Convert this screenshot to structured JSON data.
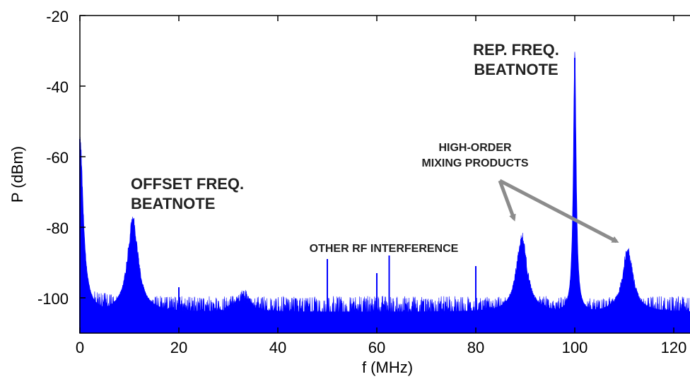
{
  "chart_data": {
    "type": "line",
    "xlabel": "f (MHz)",
    "ylabel": "P (dBm)",
    "xlim": [
      0,
      122
    ],
    "ylim": [
      -110,
      -20
    ],
    "x_ticks": [
      "0",
      "20",
      "40",
      "60",
      "80",
      "100",
      "120"
    ],
    "y_ticks": [
      "-20",
      "-40",
      "-60",
      "-80",
      "-100"
    ],
    "grid": false,
    "colors": {
      "trace": "#0000ff",
      "arrow": "#8c8c8c",
      "axis": "#000000"
    },
    "noise_floor_dbm": -104,
    "series": [
      {
        "name": "",
        "peaks": [
          {
            "f": 0,
            "p": -55
          },
          {
            "f": 10.7,
            "p": -78
          },
          {
            "f": 20,
            "p": -97
          },
          {
            "f": 33,
            "p": -99
          },
          {
            "f": 50,
            "p": -89
          },
          {
            "f": 60,
            "p": -93
          },
          {
            "f": 62.5,
            "p": -88
          },
          {
            "f": 80,
            "p": -91
          },
          {
            "f": 89.3,
            "p": -83
          },
          {
            "f": 100,
            "p": -32
          },
          {
            "f": 110.7,
            "p": -87
          }
        ]
      }
    ],
    "annotations": {
      "offset_line1": "OFFSET FREQ.",
      "offset_line2": "BEATNOTE",
      "rep_line1": "REP. FREQ.",
      "rep_line2": "BEATNOTE",
      "mixing_line1": "HIGH-ORDER",
      "mixing_line2": "MIXING PRODUCTS",
      "interference": "OTHER RF INTERFERENCE"
    }
  }
}
